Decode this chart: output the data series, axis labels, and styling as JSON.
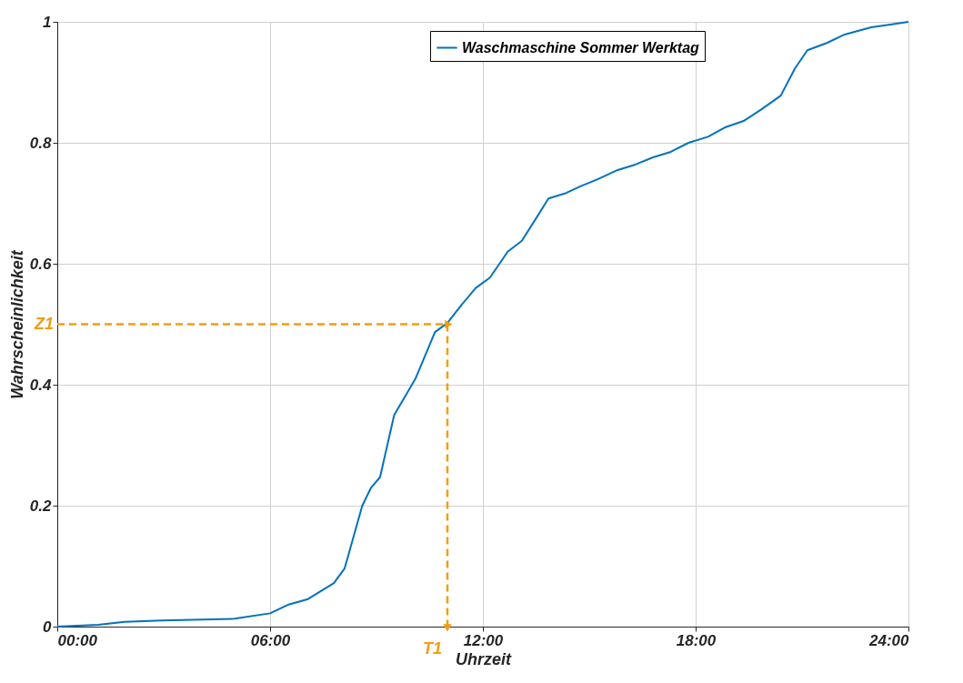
{
  "chart_data": {
    "type": "line",
    "xlabel": "Uhrzeit",
    "ylabel": "Wahrscheinlichkeit",
    "x": [
      0,
      1.15,
      1.9,
      2.95,
      5,
      6,
      6.5,
      7.05,
      7.8,
      8.1,
      8.6,
      8.85,
      9.1,
      9.5,
      9.9,
      10.1,
      10.65,
      11,
      11.4,
      11.8,
      12.2,
      12.7,
      13.1,
      13.5,
      13.85,
      14.35,
      14.75,
      15.25,
      15.8,
      16.3,
      16.8,
      17.3,
      17.8,
      18.35,
      18.85,
      19.35,
      19.85,
      20.4,
      20.8,
      21.15,
      21.7,
      22.2,
      22.95,
      23.45,
      24
    ],
    "series": [
      {
        "name": "Waschmaschine Sommer Werktag",
        "color": "#0072bd",
        "values": [
          0,
          0.003,
          0.008,
          0.01,
          0.013,
          0.022,
          0.036,
          0.045,
          0.072,
          0.096,
          0.2,
          0.23,
          0.247,
          0.35,
          0.39,
          0.41,
          0.487,
          0.502,
          0.532,
          0.56,
          0.577,
          0.62,
          0.638,
          0.675,
          0.708,
          0.717,
          0.728,
          0.74,
          0.755,
          0.764,
          0.776,
          0.785,
          0.8,
          0.81,
          0.826,
          0.836,
          0.855,
          0.878,
          0.923,
          0.953,
          0.965,
          0.979,
          0.991,
          0.995,
          1
        ]
      }
    ],
    "xlim": [
      0,
      24
    ],
    "xticks": [
      {
        "value": 0,
        "label": "00:00"
      },
      {
        "value": 6,
        "label": "06:00"
      },
      {
        "value": 12,
        "label": "12:00"
      },
      {
        "value": 18,
        "label": "18:00"
      },
      {
        "value": 24,
        "label": "24:00"
      }
    ],
    "ylim": [
      0,
      1
    ],
    "yticks": [
      0,
      0.2,
      0.4,
      0.6,
      0.8,
      1
    ],
    "grid": true,
    "legend": "top right",
    "line_style": "solid",
    "marker": "none",
    "annotations": [
      {
        "text": "Z1",
        "x": 11,
        "y": 0.5
      },
      {
        "text": "T1",
        "x": 11,
        "y": 0
      }
    ]
  }
}
